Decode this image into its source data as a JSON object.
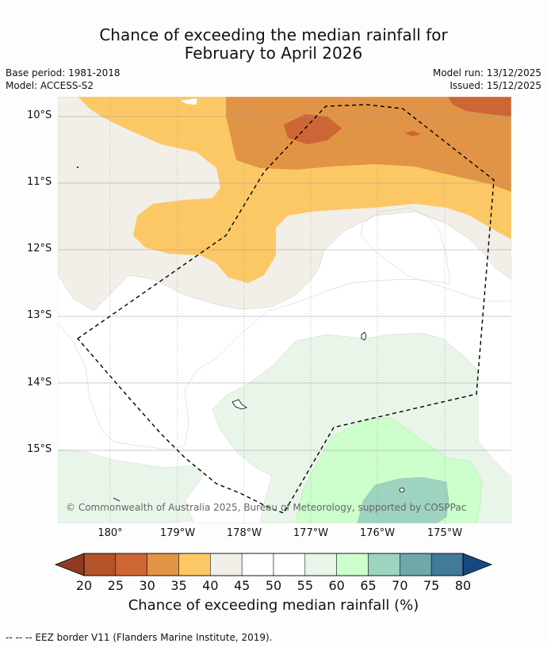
{
  "title": {
    "line1": "Chance of exceeding the median rainfall for",
    "line2": "February to April 2026"
  },
  "info": {
    "base_period": "Base period: 1981-2018",
    "model": "Model: ACCESS-S2",
    "model_run": "Model run: 13/12/2025",
    "issued": "Issued: 15/12/2025"
  },
  "map": {
    "lat_labels": [
      "10°S",
      "11°S",
      "12°S",
      "13°S",
      "14°S",
      "15°S"
    ],
    "lon_labels": [
      "180°",
      "179°W",
      "178°W",
      "177°W",
      "176°W",
      "175°W"
    ],
    "credit": "© Commonwealth of Australia 2025, Bureau of Meteorology, supported by COSPPac"
  },
  "colorbar": {
    "ticks": [
      "20",
      "25",
      "30",
      "35",
      "40",
      "45",
      "50",
      "55",
      "60",
      "65",
      "70",
      "75",
      "80"
    ],
    "colors": [
      "#b4522a",
      "#cd6634",
      "#e19445",
      "#fcc866",
      "#f2eee8",
      "#ffffff",
      "#ffffff",
      "#e9f5e9",
      "#ccffcc",
      "#9dd3bf",
      "#6ea8a9",
      "#427a99"
    ],
    "under_color": "#8f3a22",
    "over_color": "#17497e",
    "label": "Chance of exceeding median rainfall (%)"
  },
  "footer": "--  --  -- EEZ border V11 (Flanders Marine Institute, 2019)."
}
